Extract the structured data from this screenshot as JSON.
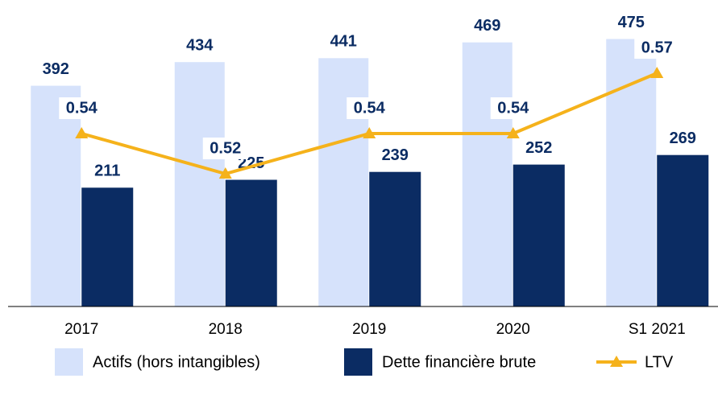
{
  "chart_data": {
    "type": "bar",
    "categories": [
      "2017",
      "2018",
      "2019",
      "2020",
      "S1 2021"
    ],
    "series": [
      {
        "name": "Actifs (hors intangibles)",
        "color": "#d6e2fb",
        "values": [
          392,
          434,
          441,
          469,
          475
        ]
      },
      {
        "name": "Dette financière brute",
        "color": "#0b2c63",
        "values": [
          211,
          225,
          239,
          252,
          269
        ]
      },
      {
        "name": "LTV",
        "type": "line",
        "axis": "y2",
        "color": "#f5b21b",
        "values": [
          0.54,
          0.52,
          0.54,
          0.54,
          0.57
        ]
      }
    ],
    "ylim": [
      0,
      500
    ],
    "y2lim": [
      0.454,
      0.594
    ]
  }
}
